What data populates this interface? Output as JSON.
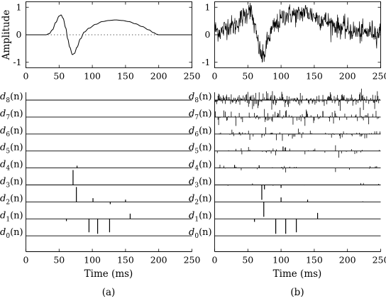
{
  "chart_data": [
    {
      "id": "a-top",
      "type": "line",
      "ylabel": "Amplitude",
      "xlim": [
        0,
        250
      ],
      "ylim": [
        -1.2,
        1.2
      ],
      "xticks": [
        "0",
        "50",
        "100",
        "150",
        "200",
        "250"
      ],
      "yticks": [
        "1",
        "0",
        "-1"
      ],
      "zero_line": "dotted",
      "series": [
        {
          "points": [
            [
              0,
              0
            ],
            [
              30,
              0
            ],
            [
              35,
              0.04
            ],
            [
              40,
              0.18
            ],
            [
              45,
              0.45
            ],
            [
              50,
              0.68
            ],
            [
              53,
              0.72
            ],
            [
              56,
              0.6
            ],
            [
              60,
              0.25
            ],
            [
              63,
              -0.15
            ],
            [
              66,
              -0.45
            ],
            [
              70,
              -0.72
            ],
            [
              73,
              -0.68
            ],
            [
              77,
              -0.45
            ],
            [
              82,
              -0.15
            ],
            [
              88,
              0.1
            ],
            [
              95,
              0.24
            ],
            [
              105,
              0.38
            ],
            [
              115,
              0.48
            ],
            [
              125,
              0.52
            ],
            [
              135,
              0.54
            ],
            [
              145,
              0.52
            ],
            [
              155,
              0.48
            ],
            [
              165,
              0.4
            ],
            [
              175,
              0.3
            ],
            [
              185,
              0.18
            ],
            [
              192,
              0.08
            ],
            [
              197,
              0.02
            ],
            [
              200,
              0
            ],
            [
              250,
              0
            ]
          ]
        }
      ]
    },
    {
      "id": "b-top",
      "type": "line",
      "xlim": [
        0,
        250
      ],
      "ylim": [
        -1.2,
        1.2
      ],
      "xticks": [
        "0",
        "50",
        "100",
        "150",
        "200",
        "250"
      ],
      "yticks": [
        "1",
        "0",
        "-1"
      ],
      "series": [
        {
          "points": [
            [
              0,
              0.2
            ],
            [
              10,
              0.1
            ],
            [
              20,
              0.35
            ],
            [
              30,
              0.3
            ],
            [
              40,
              0.6
            ],
            [
              48,
              0.75
            ],
            [
              52,
              1.05
            ],
            [
              56,
              0.7
            ],
            [
              62,
              0.1
            ],
            [
              67,
              -0.5
            ],
            [
              72,
              -0.85
            ],
            [
              75,
              -0.7
            ],
            [
              80,
              -0.2
            ],
            [
              88,
              0.25
            ],
            [
              95,
              0.4
            ],
            [
              105,
              0.7
            ],
            [
              115,
              0.75
            ],
            [
              125,
              0.7
            ],
            [
              135,
              0.85
            ],
            [
              145,
              0.75
            ],
            [
              155,
              0.6
            ],
            [
              165,
              0.55
            ],
            [
              175,
              0.4
            ],
            [
              185,
              0.3
            ],
            [
              195,
              0.25
            ],
            [
              205,
              0.15
            ],
            [
              215,
              0.1
            ],
            [
              225,
              0.05
            ],
            [
              235,
              0.15
            ],
            [
              245,
              0.05
            ],
            [
              250,
              0.1
            ]
          ],
          "noise": 0.35
        }
      ]
    },
    {
      "id": "a-bottom",
      "type": "stem",
      "xlabel": "Time (ms)",
      "xlim": [
        0,
        250
      ],
      "xticks": [
        "0",
        "50",
        "100",
        "150",
        "200",
        "250"
      ],
      "levels": [
        {
          "label": "d8(n)",
          "sub": "8",
          "spikes": []
        },
        {
          "label": "d7(n)",
          "sub": "7",
          "spikes": []
        },
        {
          "label": "d6(n)",
          "sub": "6",
          "spikes": []
        },
        {
          "label": "d5(n)",
          "sub": "5",
          "spikes": []
        },
        {
          "label": "d4(n)",
          "sub": "4",
          "spikes": [
            [
              77,
              0.15
            ]
          ]
        },
        {
          "label": "d3(n)",
          "sub": "3",
          "spikes": [
            [
              71,
              1.0
            ]
          ]
        },
        {
          "label": "d2(n)",
          "sub": "2",
          "spikes": [
            [
              76,
              1.0
            ],
            [
              101,
              0.25
            ],
            [
              127,
              -0.15
            ],
            [
              150,
              0.15
            ]
          ]
        },
        {
          "label": "d1(n)",
          "sub": "1",
          "spikes": [
            [
              61,
              -0.15
            ],
            [
              95,
              -0.9
            ],
            [
              108,
              -1.0
            ],
            [
              126,
              -0.9
            ],
            [
              157,
              0.35
            ]
          ]
        },
        {
          "label": "d0(n)",
          "sub": "0",
          "spikes": []
        }
      ]
    },
    {
      "id": "b-bottom",
      "type": "stem",
      "xlabel": "Time (ms)",
      "xlim": [
        0,
        250
      ],
      "xticks": [
        "0",
        "50",
        "100",
        "150",
        "200",
        "250"
      ],
      "levels": [
        {
          "label": "d8(n)",
          "sub": "8",
          "spikes": [],
          "noise": 0.25,
          "density": 1.0
        },
        {
          "label": "d7(n)",
          "sub": "7",
          "spikes": [
            [
              163,
              0.4
            ]
          ],
          "noise": 0.28,
          "density": 0.45
        },
        {
          "label": "d6(n)",
          "sub": "6",
          "spikes": [],
          "noise": 0.22,
          "density": 0.28
        },
        {
          "label": "d5(n)",
          "sub": "5",
          "spikes": [
            [
              103,
              0.3
            ]
          ],
          "noise": 0.18,
          "density": 0.15
        },
        {
          "label": "d4(n)",
          "sub": "4",
          "spikes": [
            [
              30,
              0.2
            ],
            [
              67,
              0.18
            ]
          ],
          "noise": 0.15,
          "density": 0.08
        },
        {
          "label": "d3(n)",
          "sub": "3",
          "spikes": [
            [
              71,
              -1.0
            ],
            [
              75,
              -0.3
            ],
            [
              100,
              -0.2
            ]
          ],
          "noise": 0.12,
          "density": 0.04
        },
        {
          "label": "d2(n)",
          "sub": "2",
          "spikes": [
            [
              74,
              -1.0
            ],
            [
              100,
              0.3
            ],
            [
              140,
              0.15
            ]
          ],
          "noise": 0.1,
          "density": 0.02
        },
        {
          "label": "d1(n)",
          "sub": "1",
          "spikes": [
            [
              60,
              -0.2
            ],
            [
              92,
              -1.0
            ],
            [
              107,
              -1.0
            ],
            [
              123,
              -0.9
            ],
            [
              155,
              0.4
            ]
          ],
          "noise": 0.0,
          "density": 0.0
        },
        {
          "label": "d0(n)",
          "sub": "0",
          "spikes": [],
          "noise": 0.0,
          "density": 0.0
        }
      ]
    }
  ],
  "captions": {
    "a": "(a)",
    "b": "(b)"
  }
}
